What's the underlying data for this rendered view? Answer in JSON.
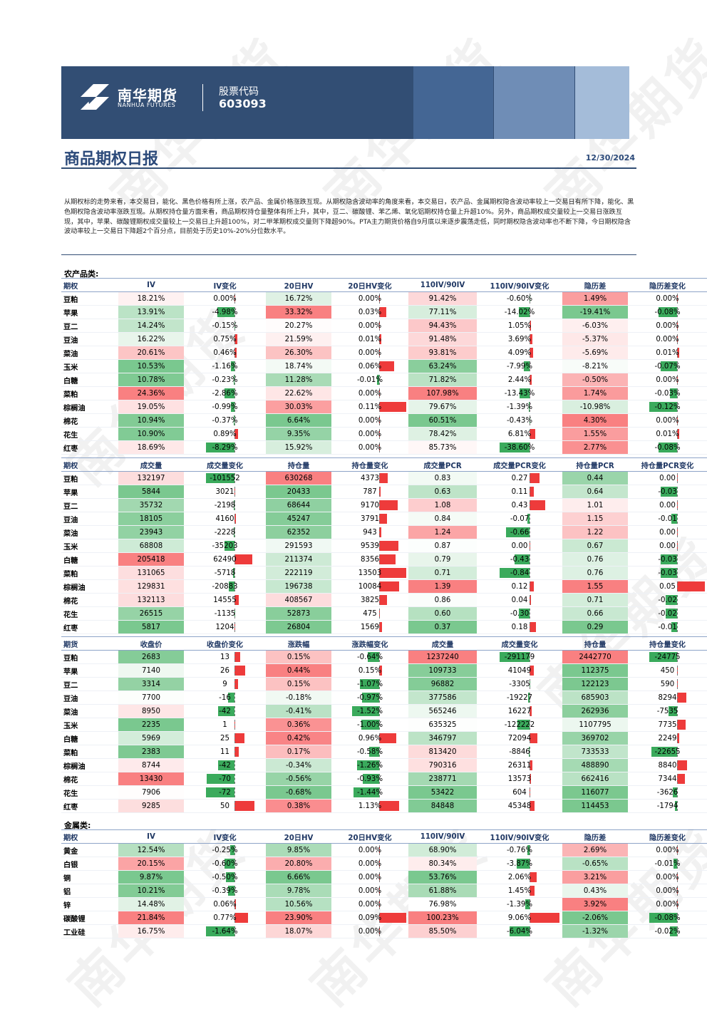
{
  "header": {
    "brand": "南华期货",
    "brand_en": "NANHUA FUTURES",
    "code_label": "股票代码",
    "code": "603093"
  },
  "title": "商品期权日报",
  "date": "12/30/2024",
  "summary": "从期权标的走势来看，本交易日，能化、黑色价格有所上涨，农产品、金属价格涨跌互现。从期权隐含波动率的角度来看，本交易日，农产品、金属期权隐含波动率较上一交易日有所下降，能化、黑色期权隐含波动率涨跌互现。从期权持仓量方面来看，商品期权持仓量整体有所上升，其中，豆二、碳酸锂、苯乙烯、氧化铝期权持仓量上升超10%。另外，商品期权成交量较上一交易日涨跌互现，其中，苹果、碳酸锂期权成交量较上一交易日上升超100%，对二甲苯期权成交量则下降超90%。PTA主力期货价格自9月底以来逐步震荡走低，同时期权隐含波动率也不断下降，今日期权隐含波动率较上一交易日下降超2个百分点，目前处于历史10%-20%分位数水平。",
  "sections": {
    "agri": "农产品类:",
    "metal": "金属类:"
  },
  "colors": {
    "header_bg": "#324e74",
    "green": "#3aaa5c",
    "red": "#ee3b3b",
    "ivgreen": "#63be7b",
    "ivred": "#f8696b"
  },
  "tables": [
    {
      "id": "agri-iv",
      "headers": [
        "期权",
        "IV",
        "IV变化",
        "20日HV",
        "20日HV变化",
        "110IV/90IV",
        "110IV/90IV变化",
        "隐历差",
        "隐历差变化"
      ],
      "rows": [
        [
          "豆粕",
          "18.21%",
          "0.00%",
          "16.72%",
          "0.00%",
          "91.42%",
          "-0.60%",
          "1.49%",
          "0.00%"
        ],
        [
          "苹果",
          "13.91%",
          "-4.98%",
          "33.32%",
          "0.03%",
          "77.11%",
          "-14.02%",
          "-19.41%",
          "-0.08%"
        ],
        [
          "豆二",
          "14.24%",
          "-0.15%",
          "20.27%",
          "0.00%",
          "94.43%",
          "1.05%",
          "-6.03%",
          "0.00%"
        ],
        [
          "豆油",
          "16.22%",
          "0.75%",
          "21.59%",
          "0.01%",
          "91.48%",
          "3.69%",
          "-5.37%",
          "0.00%"
        ],
        [
          "菜油",
          "20.61%",
          "0.46%",
          "26.30%",
          "0.00%",
          "93.81%",
          "4.09%",
          "-5.69%",
          "0.01%"
        ],
        [
          "玉米",
          "10.53%",
          "-1.16%",
          "18.74%",
          "0.06%",
          "63.24%",
          "-7.99%",
          "-8.21%",
          "-0.07%"
        ],
        [
          "白糖",
          "10.78%",
          "-0.23%",
          "11.28%",
          "-0.01%",
          "71.82%",
          "2.44%",
          "-0.50%",
          "0.00%"
        ],
        [
          "菜粕",
          "24.36%",
          "-2.86%",
          "22.62%",
          "0.00%",
          "107.98%",
          "-13.43%",
          "1.74%",
          "-0.03%"
        ],
        [
          "棕榈油",
          "19.05%",
          "-0.99%",
          "30.03%",
          "0.11%",
          "79.67%",
          "-1.39%",
          "-10.98%",
          "-0.12%"
        ],
        [
          "棉花",
          "10.94%",
          "-0.37%",
          "6.64%",
          "0.00%",
          "60.51%",
          "-0.43%",
          "4.30%",
          "0.00%"
        ],
        [
          "花生",
          "10.90%",
          "0.89%",
          "9.35%",
          "0.00%",
          "78.42%",
          "6.81%",
          "1.55%",
          "0.01%"
        ],
        [
          "红枣",
          "18.69%",
          "-8.29%",
          "15.92%",
          "0.00%",
          "85.73%",
          "-38.60%",
          "2.77%",
          "-0.08%"
        ]
      ]
    },
    {
      "id": "agri-vol",
      "headers": [
        "期权",
        "成交量",
        "成交量变化",
        "持仓量",
        "持仓量变化",
        "成交量PCR",
        "成交量PCR变化",
        "持仓量PCR",
        "持仓量PCR变化"
      ],
      "rows": [
        [
          "豆粕",
          "132197",
          "-101552",
          "630268",
          "4373",
          "0.83",
          "0.27",
          "0.44",
          "0.00"
        ],
        [
          "苹果",
          "5844",
          "3021",
          "20433",
          "787",
          "0.63",
          "0.11",
          "0.64",
          "-0.03"
        ],
        [
          "豆二",
          "35732",
          "-2198",
          "68644",
          "9170",
          "1.08",
          "0.43",
          "1.01",
          "0.00"
        ],
        [
          "豆油",
          "18105",
          "4160",
          "45247",
          "3791",
          "0.84",
          "-0.07",
          "1.15",
          "-0.01"
        ],
        [
          "菜油",
          "23943",
          "-2228",
          "62352",
          "943",
          "1.24",
          "-0.66",
          "1.22",
          "0.00"
        ],
        [
          "玉米",
          "68808",
          "-35203",
          "291593",
          "9539",
          "0.87",
          "0.00",
          "0.67",
          "0.00"
        ],
        [
          "白糖",
          "205418",
          "62490",
          "211374",
          "8356",
          "0.79",
          "-0.43",
          "0.76",
          "-0.03"
        ],
        [
          "菜粕",
          "131065",
          "-5718",
          "222119",
          "13503",
          "0.71",
          "-0.84",
          "0.76",
          "-0.03"
        ],
        [
          "棕榈油",
          "129831",
          "-20883",
          "196738",
          "10084",
          "1.39",
          "0.12",
          "1.55",
          "0.05"
        ],
        [
          "棉花",
          "132113",
          "14555",
          "408567",
          "3825",
          "0.86",
          "0.04",
          "0.71",
          "-0.02"
        ],
        [
          "花生",
          "26515",
          "-1135",
          "52873",
          "475",
          "0.60",
          "-0.30",
          "0.66",
          "-0.02"
        ],
        [
          "红枣",
          "5817",
          "1204",
          "26804",
          "1569",
          "0.37",
          "0.18",
          "0.29",
          "-0.01"
        ]
      ]
    },
    {
      "id": "agri-fut",
      "headers": [
        "期货",
        "收盘价",
        "收盘价变化",
        "涨跌幅",
        "涨跌幅变化",
        "成交量",
        "成交量变化",
        "持仓量",
        "持仓量变化"
      ],
      "rows": [
        [
          "豆粕",
          "2683",
          "13",
          "0.15%",
          "-0.64%",
          "1237240",
          "-291179",
          "2442770",
          "-24775"
        ],
        [
          "苹果",
          "7140",
          "26",
          "0.44%",
          "0.15%",
          "109733",
          "41049",
          "112375",
          "450"
        ],
        [
          "豆二",
          "3314",
          "9",
          "0.15%",
          "-1.07%",
          "96882",
          "-3305",
          "122123",
          "590"
        ],
        [
          "豆油",
          "7700",
          "-16",
          "-0.18%",
          "-0.97%",
          "377586",
          "-19227",
          "685903",
          "8294"
        ],
        [
          "菜油",
          "8950",
          "-42",
          "-0.41%",
          "-1.52%",
          "565246",
          "16227",
          "262936",
          "-7535"
        ],
        [
          "玉米",
          "2235",
          "1",
          "0.36%",
          "-1.00%",
          "635325",
          "-122222",
          "1107795",
          "7735"
        ],
        [
          "白糖",
          "5969",
          "25",
          "0.42%",
          "0.96%",
          "346797",
          "72094",
          "369702",
          "2249"
        ],
        [
          "菜粕",
          "2383",
          "11",
          "0.17%",
          "-0.58%",
          "813420",
          "-8846",
          "733533",
          "-22655"
        ],
        [
          "棕榈油",
          "8744",
          "-42",
          "-0.34%",
          "-1.26%",
          "790316",
          "26311",
          "488890",
          "8840"
        ],
        [
          "棉花",
          "13430",
          "-70",
          "-0.56%",
          "-0.93%",
          "238771",
          "13573",
          "662416",
          "7344"
        ],
        [
          "花生",
          "7906",
          "-72",
          "-0.68%",
          "-1.44%",
          "53422",
          "604",
          "116077",
          "-3626"
        ],
        [
          "红枣",
          "9285",
          "50",
          "0.38%",
          "1.13%",
          "84848",
          "45348",
          "114453",
          "-1794"
        ]
      ]
    },
    {
      "id": "metal-iv",
      "headers": [
        "期权",
        "IV",
        "IV变化",
        "20日HV",
        "20日HV变化",
        "110IV/90IV",
        "110IV/90IV变化",
        "隐历差",
        "隐历差变化"
      ],
      "rows": [
        [
          "黄金",
          "12.54%",
          "-0.25%",
          "9.85%",
          "0.00%",
          "68.90%",
          "-0.76%",
          "2.69%",
          "0.00%"
        ],
        [
          "白银",
          "20.15%",
          "-0.60%",
          "20.80%",
          "0.00%",
          "80.34%",
          "-3.87%",
          "-0.65%",
          "-0.01%"
        ],
        [
          "铜",
          "9.87%",
          "-0.50%",
          "6.66%",
          "0.00%",
          "53.76%",
          "2.06%",
          "3.21%",
          "0.00%"
        ],
        [
          "铝",
          "10.21%",
          "-0.39%",
          "9.78%",
          "0.00%",
          "61.88%",
          "1.45%",
          "0.43%",
          "0.00%"
        ],
        [
          "锌",
          "14.48%",
          "0.06%",
          "10.56%",
          "0.00%",
          "76.98%",
          "-1.39%",
          "3.92%",
          "0.00%"
        ],
        [
          "碳酸锂",
          "21.84%",
          "0.77%",
          "23.90%",
          "0.09%",
          "100.23%",
          "9.06%",
          "-2.06%",
          "-0.08%"
        ],
        [
          "工业硅",
          "16.75%",
          "-1.64%",
          "18.07%",
          "0.00%",
          "85.50%",
          "-6.04%",
          "-1.32%",
          "-0.02%"
        ]
      ]
    }
  ]
}
